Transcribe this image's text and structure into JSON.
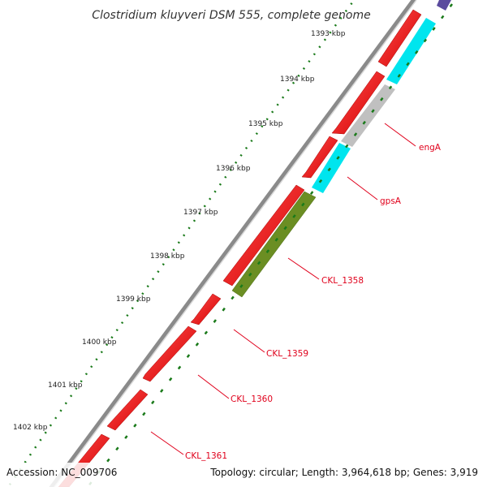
{
  "title": "Clostridium kluyveri DSM 555, complete genome",
  "footer": {
    "accession": "Accession: NC_009706",
    "summary": "Topology: circular; Length: 3,964,618 bp; Genes: 3,919"
  },
  "scale_ticks": [
    "1393 kbp",
    "1394 kbp",
    "1395 kbp",
    "1396 kbp",
    "1397 kbp",
    "1398 kbp",
    "1399 kbp",
    "1400 kbp",
    "1401 kbp",
    "1402 kbp"
  ],
  "gene_labels": [
    "engA",
    "gpsA",
    "CKL_1358",
    "CKL_1359",
    "CKL_1360",
    "CKL_1361"
  ],
  "colors": {
    "backbone": "#888888",
    "cds": "#ff0000",
    "gene_cyan": "#00e5ee",
    "gene_gray": "#c0c0c0",
    "gene_olive": "#6b8e23",
    "gene_purple": "#5a4a9e",
    "label": "#e0001b",
    "tick": "#1a7a1a"
  }
}
